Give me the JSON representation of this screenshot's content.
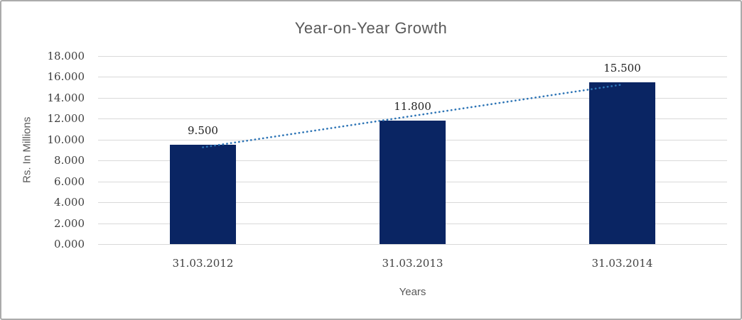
{
  "chart_data": {
    "type": "bar",
    "title": "Year-on-Year Growth",
    "xlabel": "Years",
    "ylabel": "Rs. In Millions",
    "categories": [
      "31.03.2012",
      "31.03.2013",
      "31.03.2014"
    ],
    "values": [
      9.5,
      11.8,
      15.5
    ],
    "data_labels": [
      "9.500",
      "11.800",
      "15.500"
    ],
    "ylim": [
      0,
      18
    ],
    "ytick_step": 2,
    "ytick_labels": [
      "0.000",
      "2.000",
      "4.000",
      "6.000",
      "8.000",
      "10.000",
      "12.000",
      "14.000",
      "16.000",
      "18.000"
    ],
    "grid": true,
    "legend": "none",
    "trendline": {
      "type": "linear",
      "style": "dotted"
    },
    "colors": {
      "bar": "#0a2563",
      "trendline": "#2e75b6",
      "gridline": "#d9d9d9",
      "tick_text": "#404040",
      "title_text": "#595959",
      "data_label_text": "#1f1f1f",
      "frame_border": "#ababab",
      "background": "#ffffff"
    }
  }
}
